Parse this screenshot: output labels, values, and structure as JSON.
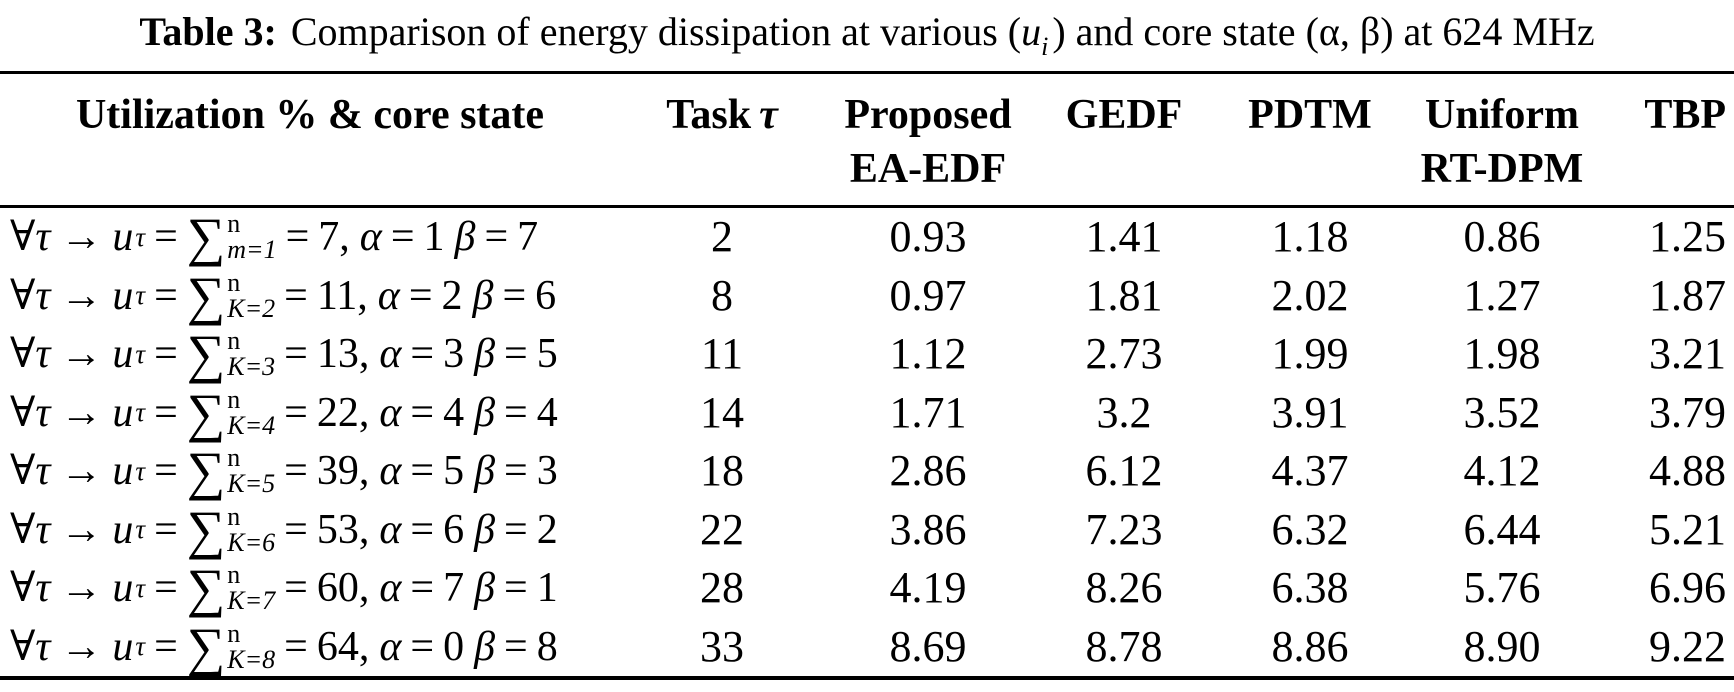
{
  "caption": {
    "label": "Table 3:",
    "before_var": "Comparison of energy dissipation at various (",
    "var": "u",
    "var_sub": "i",
    "after_var": ") and core state (α, β) at 624 MHz"
  },
  "table": {
    "headers": [
      {
        "line1": "Utilization % & core state",
        "line2": ""
      },
      {
        "line1": "Task",
        "tau": "τ",
        "line2": ""
      },
      {
        "line1": "Proposed",
        "line2": "EA-EDF"
      },
      {
        "line1": "GEDF",
        "line2": ""
      },
      {
        "line1": "PDTM",
        "line2": ""
      },
      {
        "line1": "Uniform",
        "line2": "RT-DPM"
      },
      {
        "line1": "TBP",
        "line2": ""
      }
    ],
    "formula_template": {
      "forall": "∀",
      "tau": "τ",
      "arrow": "→",
      "u_var": "u",
      "u_sub": "τ",
      "equals": "=",
      "sigma": "∑",
      "sigma_sup": "n",
      "alpha_sym": "α",
      "beta_sym": "β"
    },
    "rows": [
      {
        "sum_sub": "m=1",
        "sum_value": "7,",
        "alpha": "1",
        "beta": "7",
        "task": "2",
        "values": [
          "0.93",
          "1.41",
          "1.18",
          "0.86",
          "1.25"
        ]
      },
      {
        "sum_sub": "K=2",
        "sum_value": "11,",
        "alpha": "2",
        "beta": "6",
        "task": "8",
        "values": [
          "0.97",
          "1.81",
          "2.02",
          "1.27",
          "1.87"
        ]
      },
      {
        "sum_sub": "K=3",
        "sum_value": "13,",
        "alpha": "3",
        "beta": "5",
        "task": "11",
        "values": [
          "1.12",
          "2.73",
          "1.99",
          "1.98",
          "3.21"
        ]
      },
      {
        "sum_sub": "K=4",
        "sum_value": "22,",
        "alpha": "4",
        "beta": "4",
        "task": "14",
        "values": [
          "1.71",
          "3.2",
          "3.91",
          "3.52",
          "3.79"
        ]
      },
      {
        "sum_sub": "K=5",
        "sum_value": "39,",
        "alpha": "5",
        "beta": "3",
        "task": "18",
        "values": [
          "2.86",
          "6.12",
          "4.37",
          "4.12",
          "4.88"
        ]
      },
      {
        "sum_sub": "K=6",
        "sum_value": "53,",
        "alpha": "6",
        "beta": "2",
        "task": "22",
        "values": [
          "3.86",
          "7.23",
          "6.32",
          "6.44",
          "5.21"
        ]
      },
      {
        "sum_sub": "K=7",
        "sum_value": "60,",
        "alpha": "7",
        "beta": "1",
        "task": "28",
        "values": [
          "4.19",
          "8.26",
          "6.38",
          "5.76",
          "6.96"
        ]
      },
      {
        "sum_sub": "K=8",
        "sum_value": "64,",
        "alpha": "0",
        "beta": "8",
        "task": "33",
        "values": [
          "8.69",
          "8.78",
          "8.86",
          "8.90",
          "9.22"
        ]
      }
    ]
  },
  "colors": {
    "text": "#000000",
    "background": "#ffffff",
    "rule": "#000000"
  }
}
